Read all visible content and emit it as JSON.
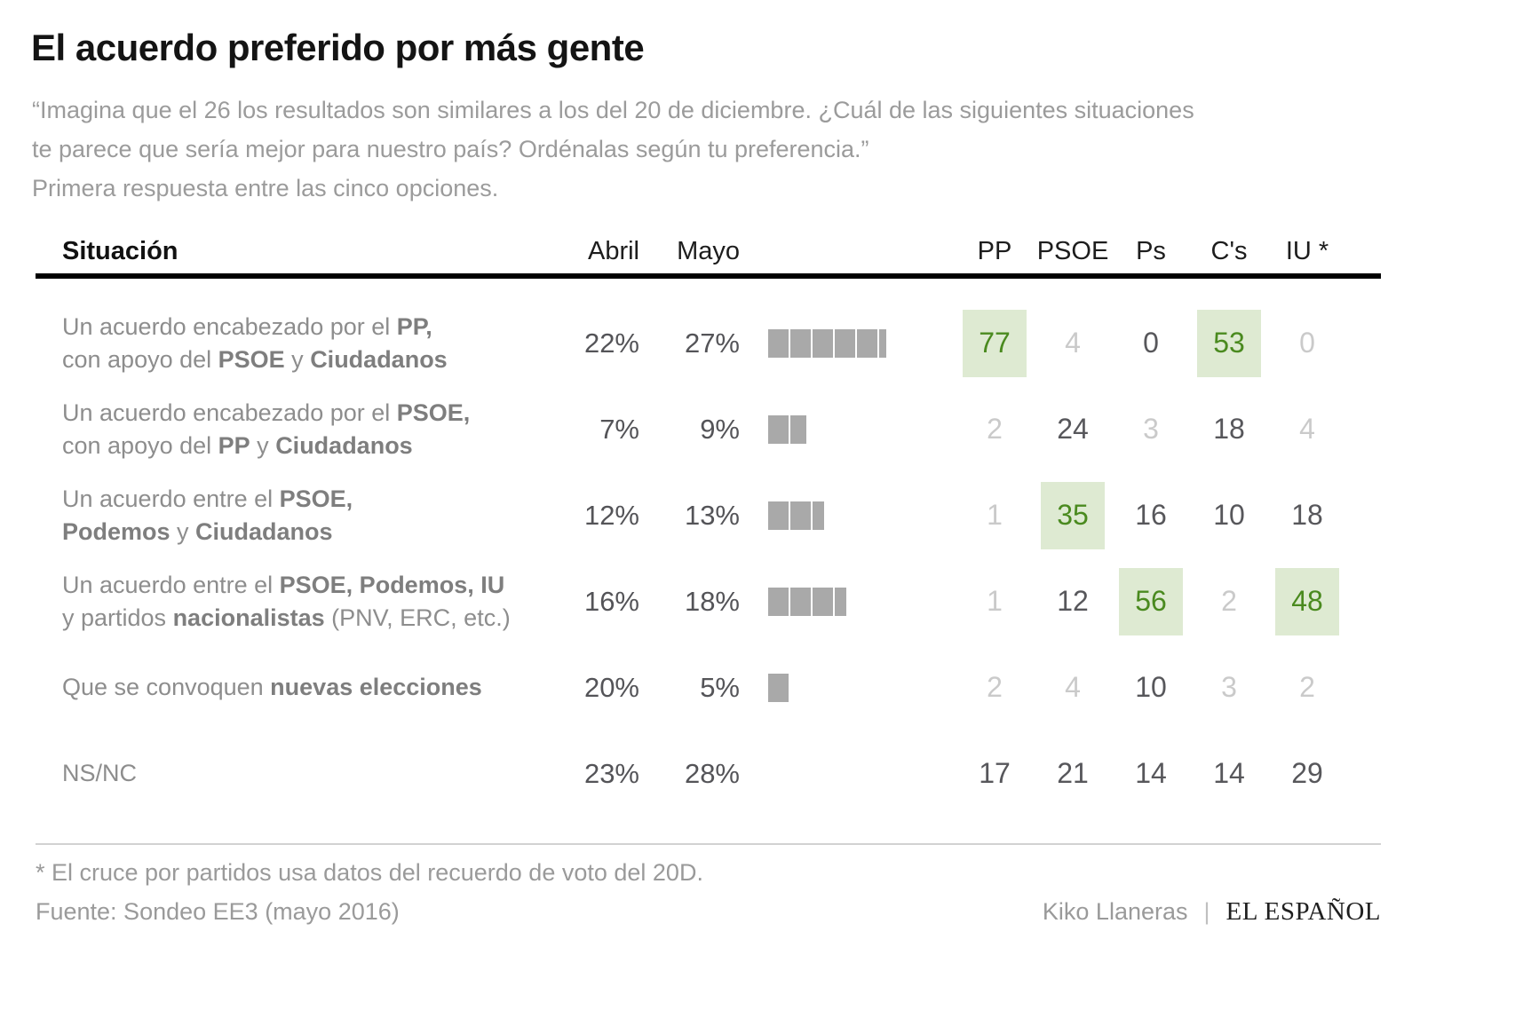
{
  "colors": {
    "highlight_green_text": "#4a8a1f",
    "highlight_green_bg": "#deead2",
    "bar_gray": "#a9a9a9",
    "muted_value": "#cacaca",
    "dark_value": "#57575b",
    "body_gray": "#8d8d8d"
  },
  "header": {
    "title": "El acuerdo preferido por más gente",
    "subtitle_quote": "“Imagina que el 26 los resultados son similares a los del 20 de diciembre. ¿Cuál de las siguientes situaciones te parece que sería mejor para nuestro país? Ordénalas según tu preferencia.”",
    "subtitle_note": "Primera respuesta entre las cinco opciones."
  },
  "table": {
    "col_situation": "Situación",
    "col_abril": "Abril",
    "col_mayo": "Mayo",
    "parties": [
      "PP",
      "PSOE",
      "Ps",
      "C's",
      "IU *"
    ],
    "rows": [
      {
        "lines": [
          [
            {
              "t": "Un acuerdo encabezado por el "
            },
            {
              "t": "PP,",
              "b": true
            }
          ],
          [
            {
              "t": "con apoyo del "
            },
            {
              "t": "PSOE",
              "b": true
            },
            {
              "t": " y "
            },
            {
              "t": "Ciudadanos",
              "b": true
            }
          ]
        ],
        "abril": "22%",
        "mayo": "27%",
        "bar_pct": 27,
        "values": [
          {
            "v": "77",
            "s": "hl"
          },
          {
            "v": "4",
            "s": "mut"
          },
          {
            "v": "0",
            "s": "dark"
          },
          {
            "v": "53",
            "s": "hl"
          },
          {
            "v": "0",
            "s": "mut"
          }
        ]
      },
      {
        "lines": [
          [
            {
              "t": "Un acuerdo encabezado por el "
            },
            {
              "t": "PSOE,",
              "b": true
            }
          ],
          [
            {
              "t": "con apoyo del "
            },
            {
              "t": "PP",
              "b": true
            },
            {
              "t": " y "
            },
            {
              "t": "Ciudadanos",
              "b": true
            }
          ]
        ],
        "abril": "7%",
        "mayo": "9%",
        "bar_pct": 9,
        "values": [
          {
            "v": "2",
            "s": "mut"
          },
          {
            "v": "24",
            "s": "dark"
          },
          {
            "v": "3",
            "s": "mut"
          },
          {
            "v": "18",
            "s": "dark"
          },
          {
            "v": "4",
            "s": "mut"
          }
        ]
      },
      {
        "lines": [
          [
            {
              "t": "Un acuerdo entre el "
            },
            {
              "t": "PSOE,",
              "b": true
            }
          ],
          [
            {
              "t": "Podemos",
              "b": true
            },
            {
              "t": " y "
            },
            {
              "t": "Ciudadanos",
              "b": true
            }
          ]
        ],
        "abril": "12%",
        "mayo": "13%",
        "bar_pct": 13,
        "values": [
          {
            "v": "1",
            "s": "mut"
          },
          {
            "v": "35",
            "s": "hl"
          },
          {
            "v": "16",
            "s": "dark"
          },
          {
            "v": "10",
            "s": "dark"
          },
          {
            "v": "18",
            "s": "dark"
          }
        ]
      },
      {
        "lines": [
          [
            {
              "t": "Un acuerdo entre el "
            },
            {
              "t": "PSOE, Podemos, IU",
              "b": true
            }
          ],
          [
            {
              "t": "y partidos "
            },
            {
              "t": "nacionalistas",
              "b": true
            },
            {
              "t": " (PNV, ERC, etc.)"
            }
          ]
        ],
        "abril": "16%",
        "mayo": "18%",
        "bar_pct": 18,
        "values": [
          {
            "v": "1",
            "s": "mut"
          },
          {
            "v": "12",
            "s": "dark"
          },
          {
            "v": "56",
            "s": "hl"
          },
          {
            "v": "2",
            "s": "mut"
          },
          {
            "v": "48",
            "s": "hl"
          }
        ]
      },
      {
        "lines": [
          [
            {
              "t": "Que se convoquen "
            },
            {
              "t": "nuevas elecciones",
              "b": true
            }
          ]
        ],
        "abril": "20%",
        "mayo": "5%",
        "bar_pct": 5,
        "values": [
          {
            "v": "2",
            "s": "mut"
          },
          {
            "v": "4",
            "s": "mut"
          },
          {
            "v": "10",
            "s": "dark"
          },
          {
            "v": "3",
            "s": "mut"
          },
          {
            "v": "2",
            "s": "mut"
          }
        ]
      },
      {
        "lines": [
          [
            {
              "t": "NS/NC"
            }
          ]
        ],
        "abril": "23%",
        "mayo": "28%",
        "bar_pct": 0,
        "values": [
          {
            "v": "17",
            "s": "dark"
          },
          {
            "v": "21",
            "s": "dark"
          },
          {
            "v": "14",
            "s": "dark"
          },
          {
            "v": "14",
            "s": "dark"
          },
          {
            "v": "29",
            "s": "dark"
          }
        ]
      }
    ]
  },
  "footer": {
    "note": "* El cruce por partidos usa datos del recuerdo de voto del 20D.",
    "source": "Fuente: Sondeo EE3 (mayo 2016)",
    "credit_author": "Kiko Llaneras",
    "credit_sep": "|",
    "credit_brand": "EL ESPAÑOL"
  },
  "chart_data": {
    "type": "table",
    "title": "El acuerdo preferido por más gente",
    "subtitle": "“Imagina que el 26 los resultados son similares a los del 20 de diciembre. ¿Cuál de las siguientes situaciones te parece que sería mejor para nuestro país? Ordénalas según tu preferencia.” Primera respuesta entre las cinco opciones.",
    "categories": [
      "Un acuerdo encabezado por el PP, con apoyo del PSOE y Ciudadanos",
      "Un acuerdo encabezado por el PSOE, con apoyo del PP y Ciudadanos",
      "Un acuerdo entre el PSOE, Podemos y Ciudadanos",
      "Un acuerdo entre el PSOE, Podemos, IU y partidos nacionalistas (PNV, ERC, etc.)",
      "Que se convoquen nuevas elecciones",
      "NS/NC"
    ],
    "series": [
      {
        "name": "Abril",
        "unit": "%",
        "values": [
          22,
          7,
          12,
          16,
          20,
          23
        ]
      },
      {
        "name": "Mayo",
        "unit": "%",
        "values": [
          27,
          9,
          13,
          18,
          5,
          28
        ]
      },
      {
        "name": "PP",
        "values": [
          77,
          2,
          1,
          1,
          2,
          17
        ]
      },
      {
        "name": "PSOE",
        "values": [
          4,
          24,
          35,
          12,
          4,
          21
        ]
      },
      {
        "name": "Ps",
        "values": [
          0,
          3,
          16,
          56,
          10,
          14
        ]
      },
      {
        "name": "C's",
        "values": [
          53,
          18,
          10,
          2,
          3,
          14
        ]
      },
      {
        "name": "IU",
        "values": [
          0,
          4,
          18,
          48,
          2,
          29
        ]
      }
    ],
    "bars": {
      "series": "Mayo",
      "segment_unit_pct": 5,
      "note": "gray segmented bars, one segment per 5%"
    },
    "highlighted_cells": [
      {
        "row": 0,
        "column": "PP",
        "value": 77
      },
      {
        "row": 0,
        "column": "C's",
        "value": 53
      },
      {
        "row": 2,
        "column": "PSOE",
        "value": 35
      },
      {
        "row": 3,
        "column": "Ps",
        "value": 56
      },
      {
        "row": 3,
        "column": "IU",
        "value": 48
      }
    ],
    "footnote": "* El cruce por partidos usa datos del recuerdo de voto del 20D.",
    "source": "Fuente: Sondeo EE3 (mayo 2016)"
  }
}
